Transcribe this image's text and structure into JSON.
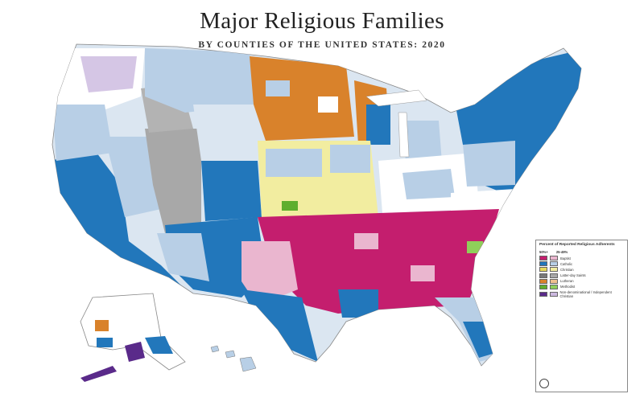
{
  "title": "Major Religious Families",
  "subtitle": "BY COUNTIES OF THE UNITED STATES: 2020",
  "colors": {
    "baptist": "#c41e6e",
    "catholic": "#2277bb",
    "catholic_light": "#b8cfe6",
    "christian": "#f2eda0",
    "lds": "#a8a8a8",
    "lutheran": "#d9822b",
    "methodist": "#8fcf5a",
    "nondenominational": "#5a2a8a",
    "pink_light": "#eab6cf",
    "lavender": "#cbb8df",
    "white": "#ffffff"
  },
  "legend": {
    "title": "Percent of Reported Religious Adherents",
    "col_high": "50%+",
    "col_low": "25-49%",
    "items": [
      {
        "label": "Baptist",
        "color_high": "#c41e6e",
        "color_low": "#eab6cf"
      },
      {
        "label": "Catholic",
        "color_high": "#2277bb",
        "color_low": "#b8cfe6"
      },
      {
        "label": "Christian",
        "color_high": "#e5d95a",
        "color_low": "#f2eda0"
      },
      {
        "label": "Latter-day Saints",
        "color_high": "#7a7a7a",
        "color_low": "#a8a8a8"
      },
      {
        "label": "Lutheran",
        "color_high": "#d9822b",
        "color_low": "#efc08e"
      },
      {
        "label": "Methodist",
        "color_high": "#5fae2e",
        "color_low": "#8fcf5a"
      },
      {
        "label": "Non-denominational / Independent Christian",
        "color_high": "#5a2a8a",
        "color_low": "#cbb8df"
      }
    ]
  }
}
